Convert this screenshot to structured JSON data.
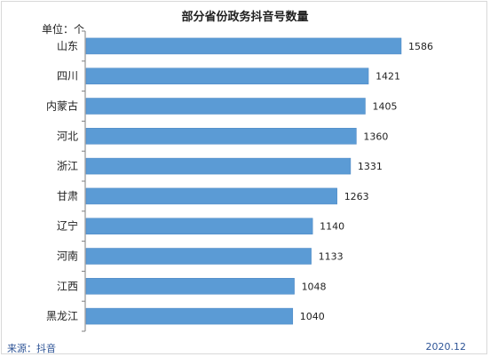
{
  "chart_data": {
    "type": "bar",
    "orientation": "horizontal",
    "title": "部分省份政务抖音号数量",
    "unit_label": "单位：个",
    "categories": [
      "山东",
      "四川",
      "内蒙古",
      "河北",
      "浙江",
      "甘肃",
      "辽宁",
      "河南",
      "江西",
      "黑龙江"
    ],
    "values": [
      1586,
      1421,
      1405,
      1360,
      1331,
      1263,
      1140,
      1133,
      1048,
      1040
    ],
    "xlim": [
      0,
      1700
    ],
    "grid": false,
    "legend": "none",
    "bar_color": "#5b9bd5"
  },
  "footer": {
    "source": "来源：抖音",
    "date": "2020.12"
  }
}
